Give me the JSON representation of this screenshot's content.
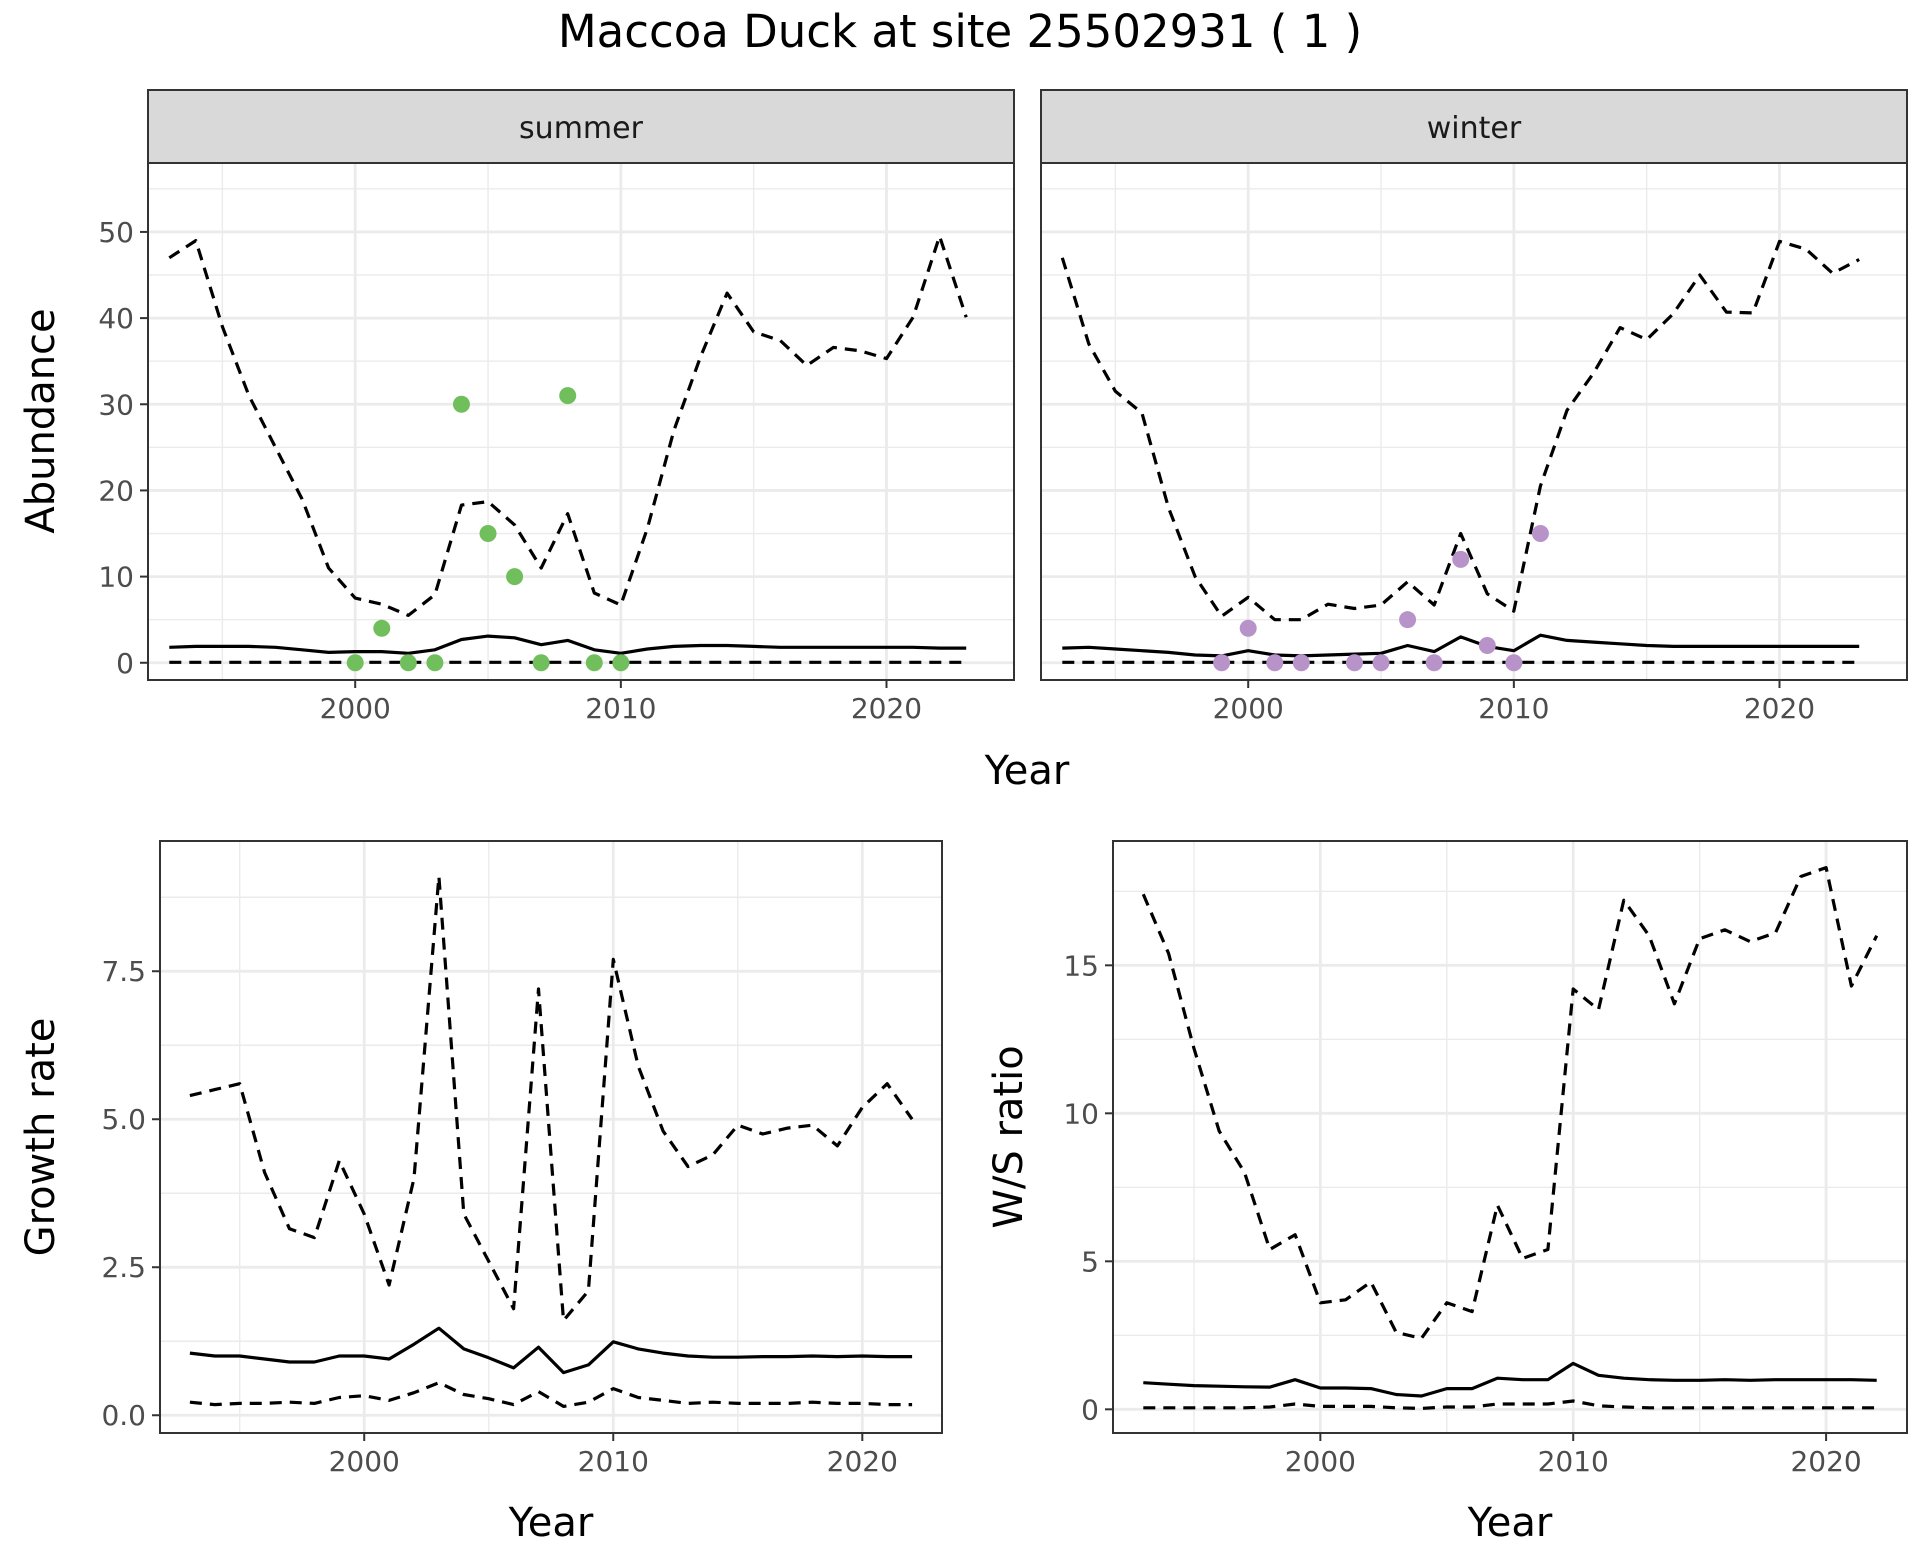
{
  "title": "Maccoa Duck at site 25502931 ( 1 )",
  "colors": {
    "summer_points": "#70bf5c",
    "winter_points": "#b893c9",
    "lines": "#000000",
    "strip_fill": "#d9d9d9",
    "grid": "#ebebeb"
  },
  "chart_data": [
    {
      "type": "line",
      "panel": "abundance",
      "facets": [
        {
          "strip_label": "summer",
          "points": {
            "x": [
              2000,
              2001,
              2002,
              2003,
              2004,
              2005,
              2006,
              2007,
              2008,
              2009,
              2010
            ],
            "y": [
              0,
              4,
              0,
              0,
              30,
              15,
              10,
              0,
              31,
              0,
              0
            ]
          },
          "series": [
            {
              "style": "solid",
              "x": [
                1993,
                1994,
                1995,
                1996,
                1997,
                1998,
                1999,
                2000,
                2001,
                2002,
                2003,
                2004,
                2005,
                2006,
                2007,
                2008,
                2009,
                2010,
                2011,
                2012,
                2013,
                2014,
                2015,
                2016,
                2017,
                2018,
                2019,
                2020,
                2021,
                2022,
                2023
              ],
              "y": [
                1.8,
                1.9,
                1.9,
                1.9,
                1.8,
                1.5,
                1.2,
                1.3,
                1.3,
                1.1,
                1.5,
                2.7,
                3.1,
                2.9,
                2.1,
                2.6,
                1.5,
                1.1,
                1.6,
                1.9,
                2.0,
                2.0,
                1.9,
                1.8,
                1.8,
                1.8,
                1.8,
                1.8,
                1.8,
                1.7,
                1.7
              ]
            },
            {
              "style": "dashed",
              "x": [
                1993,
                1994,
                1995,
                1996,
                1997,
                1998,
                1999,
                2000,
                2001,
                2002,
                2003,
                2004,
                2005,
                2006,
                2007,
                2008,
                2009,
                2010,
                2011,
                2012,
                2013,
                2014,
                2015,
                2016,
                2017,
                2018,
                2019,
                2020,
                2021,
                2022,
                2023
              ],
              "y": [
                47,
                49,
                39,
                31,
                25,
                19,
                11,
                7.5,
                6.8,
                5.5,
                7.9,
                18.3,
                18.7,
                16,
                11,
                17.3,
                8.1,
                6.7,
                15.6,
                27,
                35.5,
                42.9,
                38.4,
                37.4,
                34.5,
                36.6,
                36.2,
                35.3,
                40.1,
                49.5,
                40.1
              ]
            },
            {
              "style": "dashed",
              "x": [
                1993,
                2023
              ],
              "y": [
                0.05,
                0.05
              ]
            }
          ]
        },
        {
          "strip_label": "winter",
          "points": {
            "x": [
              1999,
              2000,
              2001,
              2002,
              2004,
              2005,
              2006,
              2007,
              2008,
              2009,
              2010,
              2011
            ],
            "y": [
              0,
              4,
              0,
              0,
              0,
              0,
              5,
              0,
              12,
              2,
              0,
              15
            ]
          },
          "series": [
            {
              "style": "solid",
              "x": [
                1993,
                1994,
                1995,
                1996,
                1997,
                1998,
                1999,
                2000,
                2001,
                2002,
                2003,
                2004,
                2005,
                2006,
                2007,
                2008,
                2009,
                2010,
                2011,
                2012,
                2013,
                2014,
                2015,
                2016,
                2017,
                2018,
                2019,
                2020,
                2021,
                2022,
                2023
              ],
              "y": [
                1.7,
                1.8,
                1.6,
                1.4,
                1.2,
                0.9,
                0.8,
                1.4,
                0.9,
                0.8,
                0.9,
                1.0,
                1.1,
                2.0,
                1.3,
                3.0,
                1.9,
                1.4,
                3.2,
                2.6,
                2.4,
                2.2,
                2.0,
                1.9,
                1.9,
                1.9,
                1.9,
                1.9,
                1.9,
                1.9,
                1.9
              ]
            },
            {
              "style": "dashed",
              "x": [
                1993,
                1994,
                1995,
                1996,
                1997,
                1998,
                1999,
                2000,
                2001,
                2002,
                2003,
                2004,
                2005,
                2006,
                2007,
                2008,
                2009,
                2010,
                2011,
                2012,
                2013,
                2014,
                2015,
                2016,
                2017,
                2018,
                2019,
                2020,
                2021,
                2022,
                2023
              ],
              "y": [
                47,
                37,
                31.5,
                29,
                18,
                10,
                5.4,
                7.6,
                5,
                5,
                6.8,
                6.3,
                6.7,
                9.4,
                6.7,
                15,
                8,
                6,
                20.5,
                29.3,
                33.6,
                38.9,
                37.5,
                40.5,
                45,
                40.7,
                40.6,
                48.9,
                48,
                45.2,
                46.8
              ]
            },
            {
              "style": "dashed",
              "x": [
                1993,
                2023
              ],
              "y": [
                0.05,
                0.05
              ]
            }
          ]
        }
      ],
      "xlabel": "Year",
      "ylabel": "Abundance",
      "xlim": [
        1992.2,
        2024.8
      ],
      "ylim": [
        -2,
        58
      ],
      "xticks": [
        2000,
        2010,
        2020
      ],
      "yticks": [
        0,
        10,
        20,
        30,
        40,
        50
      ],
      "grid": true
    },
    {
      "type": "line",
      "panel": "growth",
      "series": [
        {
          "style": "solid",
          "x": [
            1993,
            1994,
            1995,
            1996,
            1997,
            1998,
            1999,
            2000,
            2001,
            2002,
            2003,
            2004,
            2005,
            2006,
            2007,
            2008,
            2009,
            2010,
            2011,
            2012,
            2013,
            2014,
            2015,
            2016,
            2017,
            2018,
            2019,
            2020,
            2021,
            2022
          ],
          "y": [
            1.05,
            1.0,
            1.0,
            0.95,
            0.9,
            0.9,
            1.0,
            1.0,
            0.95,
            1.2,
            1.47,
            1.12,
            0.97,
            0.8,
            1.15,
            0.72,
            0.85,
            1.24,
            1.12,
            1.05,
            1.0,
            0.98,
            0.98,
            0.99,
            0.99,
            1.0,
            0.99,
            1.0,
            0.99,
            0.99
          ]
        },
        {
          "style": "dashed",
          "x": [
            1993,
            1994,
            1995,
            1996,
            1997,
            1998,
            1999,
            2000,
            2001,
            2002,
            2003,
            2004,
            2005,
            2006,
            2007,
            2008,
            2009,
            2010,
            2011,
            2012,
            2013,
            2014,
            2015,
            2016,
            2017,
            2018,
            2019,
            2020,
            2021,
            2022
          ],
          "y": [
            5.4,
            5.5,
            5.6,
            4.1,
            3.15,
            3.0,
            4.3,
            3.4,
            2.2,
            4.0,
            9.1,
            3.4,
            2.6,
            1.8,
            7.2,
            1.6,
            2.1,
            7.7,
            5.9,
            4.8,
            4.2,
            4.4,
            4.9,
            4.75,
            4.85,
            4.9,
            4.55,
            5.2,
            5.6,
            5.0
          ]
        },
        {
          "style": "dashed",
          "x": [
            1993,
            1994,
            1995,
            1996,
            1997,
            1998,
            1999,
            2000,
            2001,
            2002,
            2003,
            2004,
            2005,
            2006,
            2007,
            2008,
            2009,
            2010,
            2011,
            2012,
            2013,
            2014,
            2015,
            2016,
            2017,
            2018,
            2019,
            2020,
            2021,
            2022
          ],
          "y": [
            0.22,
            0.18,
            0.2,
            0.2,
            0.22,
            0.2,
            0.3,
            0.33,
            0.25,
            0.38,
            0.55,
            0.35,
            0.28,
            0.18,
            0.4,
            0.15,
            0.22,
            0.45,
            0.3,
            0.25,
            0.2,
            0.22,
            0.2,
            0.2,
            0.2,
            0.22,
            0.2,
            0.2,
            0.18,
            0.18
          ]
        }
      ],
      "xlabel": "Year",
      "ylabel": "Growth rate",
      "xlim": [
        1991.8,
        2023.2
      ],
      "ylim": [
        -0.3,
        9.7
      ],
      "xticks": [
        2000,
        2010,
        2020
      ],
      "yticks": [
        0.0,
        2.5,
        5.0,
        7.5
      ],
      "ytick_labels": [
        "0.0",
        "2.5",
        "5.0",
        "7.5"
      ],
      "grid": true
    },
    {
      "type": "line",
      "panel": "ratio",
      "series": [
        {
          "style": "solid",
          "x": [
            1993,
            1994,
            1995,
            1996,
            1997,
            1998,
            1999,
            2000,
            2001,
            2002,
            2003,
            2004,
            2005,
            2006,
            2007,
            2008,
            2009,
            2010,
            2011,
            2012,
            2013,
            2014,
            2015,
            2016,
            2017,
            2018,
            2019,
            2020,
            2021,
            2022
          ],
          "y": [
            0.9,
            0.85,
            0.8,
            0.78,
            0.76,
            0.75,
            1.0,
            0.72,
            0.72,
            0.7,
            0.5,
            0.45,
            0.7,
            0.7,
            1.05,
            1.0,
            1.0,
            1.55,
            1.15,
            1.05,
            1.0,
            0.98,
            0.98,
            1.0,
            0.98,
            1.0,
            1.0,
            1.0,
            1.0,
            0.98
          ]
        },
        {
          "style": "dashed",
          "x": [
            1993,
            1994,
            1995,
            1996,
            1997,
            1998,
            1999,
            2000,
            2001,
            2002,
            2003,
            2004,
            2005,
            2006,
            2007,
            2008,
            2009,
            2010,
            2011,
            2012,
            2013,
            2014,
            2015,
            2016,
            2017,
            2018,
            2019,
            2020,
            2021,
            2022
          ],
          "y": [
            17.4,
            15.4,
            12.2,
            9.4,
            8.0,
            5.4,
            5.9,
            3.6,
            3.7,
            4.3,
            2.6,
            2.4,
            3.6,
            3.3,
            6.9,
            5.1,
            5.4,
            14.2,
            13.5,
            17.2,
            16.0,
            13.7,
            15.9,
            16.2,
            15.8,
            16.1,
            18.0,
            18.3,
            14.3,
            16.0
          ]
        },
        {
          "style": "dashed",
          "x": [
            1993,
            1994,
            1995,
            1996,
            1997,
            1998,
            1999,
            2000,
            2001,
            2002,
            2003,
            2004,
            2005,
            2006,
            2007,
            2008,
            2009,
            2010,
            2011,
            2012,
            2013,
            2014,
            2015,
            2016,
            2017,
            2018,
            2019,
            2020,
            2021,
            2022
          ],
          "y": [
            0.05,
            0.05,
            0.05,
            0.05,
            0.05,
            0.08,
            0.18,
            0.1,
            0.1,
            0.1,
            0.05,
            0.03,
            0.08,
            0.08,
            0.18,
            0.18,
            0.18,
            0.28,
            0.12,
            0.08,
            0.05,
            0.05,
            0.05,
            0.05,
            0.05,
            0.05,
            0.05,
            0.05,
            0.05,
            0.05
          ]
        }
      ],
      "xlabel": "Year",
      "ylabel": "W/S ratio",
      "xlim": [
        1991.8,
        2023.2
      ],
      "ylim": [
        -0.8,
        19.2
      ],
      "xticks": [
        2000,
        2010,
        2020
      ],
      "yticks": [
        0,
        5,
        10,
        15
      ],
      "grid": true
    }
  ]
}
